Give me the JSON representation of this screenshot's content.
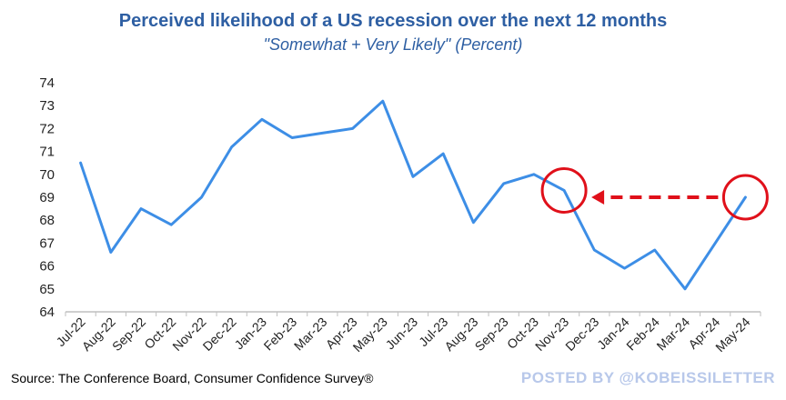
{
  "chart_data": {
    "type": "line",
    "title": "Perceived likelihood of a US recession over the next 12 months",
    "subtitle": "\"Somewhat + Very Likely\" (Percent)",
    "categories": [
      "Jul-22",
      "Aug-22",
      "Sep-22",
      "Oct-22",
      "Nov-22",
      "Dec-22",
      "Jan-23",
      "Feb-23",
      "Mar-23",
      "Apr-23",
      "May-23",
      "Jun-23",
      "Jul-23",
      "Aug-23",
      "Sep-23",
      "Oct-23",
      "Nov-23",
      "Dec-23",
      "Jan-24",
      "Feb-24",
      "Mar-24",
      "Apr-24",
      "May-24"
    ],
    "series": [
      {
        "values": [
          70.5,
          66.6,
          68.5,
          67.8,
          69.0,
          71.2,
          72.4,
          71.6,
          71.8,
          72.0,
          73.2,
          69.9,
          70.9,
          67.9,
          69.6,
          70.0,
          69.3,
          66.7,
          65.9,
          66.7,
          65.0,
          67.0,
          69.0
        ]
      }
    ],
    "ylim": [
      64,
      74
    ],
    "yticks": [
      "64",
      "65",
      "66",
      "67",
      "68",
      "69",
      "70",
      "71",
      "72",
      "73",
      "74"
    ],
    "grid": false,
    "legend": "none",
    "annotations": {
      "circled_categories": [
        "Nov-23",
        "May-24"
      ],
      "arrow": {
        "from": "May-24",
        "to": "Nov-23",
        "style": "dashed"
      }
    }
  },
  "source": "Source: The Conference Board, Consumer Confidence Survey®",
  "watermark": "POSTED BY @KOBEISSILETTER",
  "colors": {
    "title": "#2e5fa3",
    "line": "#3d8ee6",
    "annotation": "#e0101a",
    "watermark": "#b8c8ea",
    "axis": "#bfbfbf"
  }
}
